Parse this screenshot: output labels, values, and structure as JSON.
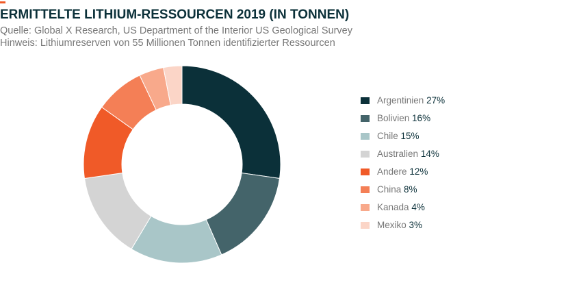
{
  "chart_data": {
    "type": "donut",
    "title": "ERMITTELTE LITHIUM-RESSOURCEN 2019 (IN TONNEN)",
    "subtitle": "Quelle: Global X Research, US Department of the Interior US Geological Survey",
    "note": "Hinweis: Lithiumreserven von 55 Millionen Tonnen identifizierter Ressourcen",
    "categories": [
      "Argentinien",
      "Bolivien",
      "Chile",
      "Australien",
      "Andere",
      "China",
      "Kanada",
      "Mexiko"
    ],
    "values": [
      27,
      16,
      15,
      14,
      12,
      8,
      4,
      3
    ],
    "value_labels": [
      "27%",
      "16%",
      "15%",
      "14%",
      "12%",
      "8%",
      "4%",
      "3%"
    ],
    "colors": [
      "#0b3039",
      "#44646a",
      "#a9c6c8",
      "#d4d4d4",
      "#f05a28",
      "#f47f56",
      "#f8a98b",
      "#fbd5c7"
    ],
    "legend": "right"
  }
}
